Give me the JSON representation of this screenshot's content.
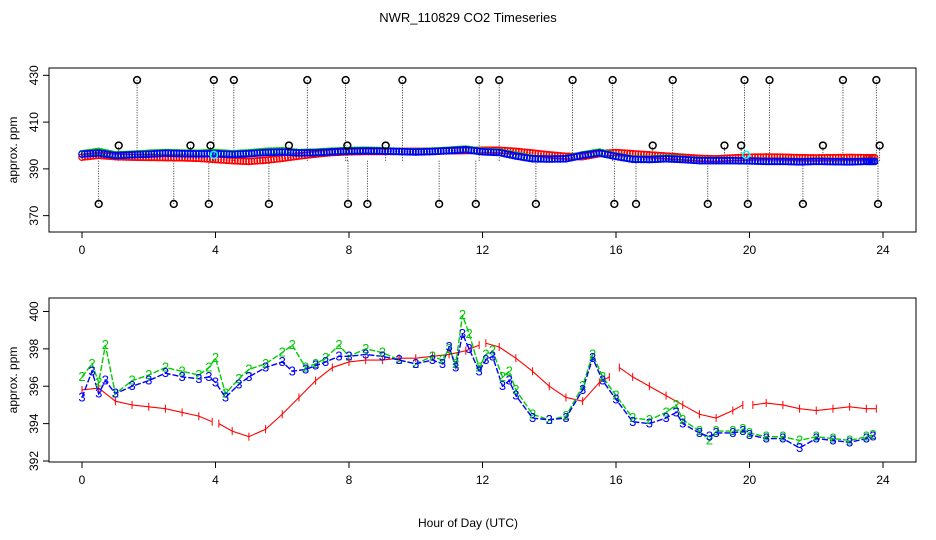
{
  "figure": {
    "title": "NWR_110829  CO2 Timeseries",
    "xlabel": "Hour of Day (UTC)"
  },
  "colors": {
    "red": "#ff0000",
    "green": "#00cc00",
    "blue": "#0000ff",
    "cyan": "#00ffff",
    "black": "#000000"
  },
  "chart_data": [
    {
      "type": "scatter",
      "title": "NWR_110829  CO2 Timeseries",
      "xlabel": "Hour of Day (UTC)",
      "ylabel": "approx. ppm",
      "xlim": [
        0,
        24
      ],
      "ylim": [
        366,
        431
      ],
      "xticks": [
        0,
        4,
        8,
        12,
        16,
        20,
        24
      ],
      "yticks": [
        370,
        390,
        410,
        430
      ],
      "series": [
        {
          "name": "red",
          "color": "#ff0000",
          "marker": "circle",
          "x": [
            0,
            0.5,
            1,
            1.5,
            2,
            2.5,
            3,
            3.5,
            4,
            4.5,
            5,
            5.5,
            6,
            6.5,
            7,
            7.5,
            8,
            8.5,
            9,
            9.5,
            10,
            10.5,
            11,
            11.5,
            12,
            12.5,
            13,
            13.5,
            14,
            14.5,
            15,
            15.5,
            16,
            16.5,
            17,
            17.5,
            18,
            18.5,
            19,
            19.5,
            20,
            20.5,
            21,
            21.5,
            22,
            22.5,
            23,
            23.5,
            23.8
          ],
          "y": [
            395,
            395.8,
            395.2,
            395,
            394.9,
            394.8,
            394.7,
            394.5,
            394,
            393.5,
            393.2,
            393.7,
            394.5,
            395.5,
            396.3,
            397,
            397.3,
            397.4,
            397.4,
            397.5,
            397.5,
            397.6,
            397.7,
            397.8,
            398,
            398,
            397.5,
            396.8,
            396,
            395.4,
            395.2,
            396.5,
            397,
            396.5,
            396,
            395.5,
            395,
            394.5,
            394.3,
            394.7,
            395,
            395.1,
            395,
            394.8,
            394.7,
            394.8,
            394.9,
            394.8,
            394.8
          ]
        },
        {
          "name": "green",
          "color": "#00cc00",
          "marker": "circle",
          "x": [
            0,
            0.5,
            1,
            1.5,
            2,
            2.5,
            3,
            3.5,
            4,
            4.5,
            5,
            5.5,
            6,
            6.5,
            7,
            7.5,
            8,
            8.5,
            9,
            9.5,
            10,
            10.5,
            11,
            11.5,
            12,
            12.5,
            13,
            13.5,
            14,
            14.5,
            15,
            15.5,
            16,
            16.5,
            17,
            17.5,
            18,
            18.5,
            19,
            19.5,
            20,
            20.5,
            21,
            21.5,
            22,
            22.5,
            23,
            23.5,
            23.8
          ],
          "y": [
            396.5,
            397.5,
            396,
            396.3,
            396.7,
            397,
            396.8,
            396.7,
            397,
            396.5,
            396.9,
            397.5,
            397.8,
            397,
            397.2,
            397.6,
            397.9,
            398,
            397.8,
            397.5,
            397.3,
            397.6,
            398,
            398.5,
            397.5,
            397.2,
            395.8,
            394.5,
            394.3,
            394.4,
            396,
            397.2,
            395.5,
            394.3,
            394.2,
            394.6,
            394.2,
            393.6,
            393.6,
            393.6,
            393.5,
            393.3,
            393.3,
            393.1,
            393.3,
            393.2,
            393.1,
            393.3,
            393.3
          ]
        },
        {
          "name": "blue",
          "color": "#0000ff",
          "marker": "circle",
          "x": [
            0,
            0.5,
            1,
            1.5,
            2,
            2.5,
            3,
            3.5,
            4,
            4.5,
            5,
            5.5,
            6,
            6.5,
            7,
            7.5,
            8,
            8.5,
            9,
            9.5,
            10,
            10.5,
            11,
            11.5,
            12,
            12.5,
            13,
            13.5,
            14,
            14.5,
            15,
            15.5,
            16,
            16.5,
            17,
            17.5,
            18,
            18.5,
            19,
            19.5,
            20,
            20.5,
            21,
            21.5,
            22,
            22.5,
            23,
            23.5,
            23.8
          ],
          "y": [
            396.3,
            396.8,
            395.7,
            396,
            396.3,
            396.7,
            396.5,
            396.4,
            396.5,
            396.2,
            396.5,
            397,
            397.2,
            396.8,
            396.9,
            397.3,
            397.6,
            397.7,
            397.6,
            397.4,
            397.2,
            397.4,
            397.8,
            398.2,
            397.3,
            397,
            395.5,
            394.3,
            394.2,
            394.3,
            395.8,
            396.8,
            395.3,
            394.1,
            394,
            394.3,
            394,
            393.5,
            393.5,
            393.5,
            393.4,
            393.2,
            393.2,
            393,
            393.2,
            393.1,
            393,
            393.2,
            393.2
          ]
        },
        {
          "name": "spikes",
          "color": "#000000",
          "marker": "circle-open",
          "x": [
            0.5,
            1.1,
            1.65,
            2.75,
            3.25,
            3.8,
            3.85,
            3.95,
            4.55,
            5.6,
            6.2,
            6.75,
            7.9,
            7.95,
            7.97,
            8.55,
            9.1,
            9.6,
            10.7,
            11.8,
            11.9,
            12.5,
            13.6,
            14.7,
            15.9,
            15.95,
            16.6,
            17.1,
            17.7,
            18.75,
            19.25,
            19.75,
            19.85,
            19.95,
            20.6,
            21.6,
            22.2,
            22.8,
            23.8,
            23.85,
            23.9
          ],
          "y": [
            375,
            400,
            428,
            375,
            400,
            375,
            400,
            428,
            428,
            375,
            400,
            428,
            428,
            400,
            375,
            375,
            400,
            428,
            375,
            375,
            428,
            428,
            375,
            428,
            428,
            375,
            375,
            400,
            428,
            375,
            400,
            400,
            428,
            375,
            428,
            375,
            400,
            428,
            428,
            375,
            400
          ]
        }
      ]
    },
    {
      "type": "line",
      "ylabel": "approx. ppm",
      "xlim": [
        0,
        24
      ],
      "ylim": [
        392,
        400.4
      ],
      "xticks": [
        0,
        4,
        8,
        12,
        16,
        20,
        24
      ],
      "yticks": [
        392,
        394,
        396,
        398,
        400
      ],
      "series": [
        {
          "name": "red",
          "color": "#ff0000",
          "marker": "|",
          "x": [
            0,
            0.5,
            1,
            1.5,
            2,
            2.5,
            3,
            3.5,
            3.9,
            null,
            4.1,
            4.5,
            5,
            5.5,
            6,
            6.5,
            7,
            7.5,
            8,
            8.5,
            9,
            9.5,
            10,
            10.5,
            11,
            11.5,
            11.9,
            null,
            12.1,
            12.5,
            13,
            13.5,
            14,
            14.5,
            15,
            15.5,
            15.8,
            null,
            16.1,
            16.5,
            17,
            17.5,
            18,
            18.5,
            19,
            19.5,
            19.8,
            null,
            20.1,
            20.5,
            21,
            21.5,
            22,
            22.5,
            23,
            23.5,
            23.8
          ],
          "y": [
            395.8,
            395.9,
            395.2,
            395,
            394.9,
            394.8,
            394.6,
            394.4,
            394.1,
            null,
            394,
            393.6,
            393.3,
            393.7,
            394.5,
            395.4,
            396.3,
            397,
            397.3,
            397.4,
            397.4,
            397.5,
            397.5,
            397.6,
            397.7,
            397.9,
            398.2,
            null,
            398.3,
            398.1,
            397.5,
            396.8,
            396,
            395.4,
            395.2,
            396.2,
            396.5,
            null,
            397,
            396.5,
            396,
            395.5,
            395,
            394.5,
            394.3,
            394.7,
            395,
            null,
            395,
            395.1,
            395,
            394.8,
            394.7,
            394.8,
            394.9,
            394.8,
            394.8
          ]
        },
        {
          "name": "green",
          "color": "#00cc00",
          "marker": "2",
          "x": [
            0,
            0.3,
            0.5,
            0.7,
            1,
            1.5,
            2,
            2.5,
            3,
            3.5,
            3.8,
            4,
            4.3,
            4.7,
            5,
            5.5,
            6,
            6.3,
            6.7,
            7,
            7.3,
            7.7,
            8,
            8.5,
            9,
            9.5,
            10,
            10.5,
            10.8,
            11,
            11.2,
            11.4,
            11.6,
            11.9,
            12.1,
            12.3,
            12.6,
            12.8,
            13,
            13.5,
            14,
            14.5,
            15,
            15.3,
            15.6,
            16,
            16.5,
            17,
            17.5,
            17.8,
            18,
            18.5,
            18.8,
            19,
            19.5,
            19.8,
            20,
            20.5,
            21,
            21.5,
            22,
            22.5,
            23,
            23.5,
            23.7
          ],
          "y": [
            396.5,
            397.2,
            396.2,
            398.2,
            395.6,
            396.3,
            396.6,
            397,
            396.8,
            396.6,
            397,
            397.5,
            395.6,
            396.4,
            396.9,
            397.2,
            397.8,
            398.2,
            397,
            397.2,
            397.5,
            398.2,
            397.6,
            398,
            397.8,
            397.4,
            397.2,
            397.6,
            397.4,
            398,
            397.2,
            399.8,
            398.8,
            397,
            397.7,
            397.9,
            396.5,
            396.8,
            395.8,
            394.5,
            394.2,
            394.4,
            396,
            397.7,
            396.5,
            395.5,
            394.3,
            394.2,
            394.6,
            395,
            394.2,
            393.6,
            393.1,
            393.6,
            393.6,
            393.7,
            393.5,
            393.3,
            393.3,
            393.1,
            393.3,
            393.2,
            393.1,
            393.3,
            393.4
          ]
        },
        {
          "name": "blue",
          "color": "#0000ff",
          "marker": "3",
          "x": [
            0,
            0.3,
            0.5,
            0.7,
            1,
            1.5,
            2,
            2.5,
            3,
            3.5,
            3.8,
            4,
            4.3,
            4.7,
            5,
            5.5,
            6,
            6.3,
            6.7,
            7,
            7.3,
            7.7,
            8,
            8.5,
            9,
            9.5,
            10,
            10.5,
            10.8,
            11,
            11.2,
            11.4,
            11.6,
            11.9,
            12.1,
            12.3,
            12.6,
            12.8,
            13,
            13.5,
            14,
            14.5,
            15,
            15.3,
            15.6,
            16,
            16.5,
            17,
            17.5,
            17.8,
            18,
            18.5,
            18.8,
            19,
            19.5,
            19.8,
            20,
            20.5,
            21,
            21.5,
            22,
            22.5,
            23,
            23.5,
            23.7
          ],
          "y": [
            395.4,
            396.8,
            395.6,
            396.3,
            395.6,
            396,
            396.3,
            396.7,
            396.5,
            396.4,
            396.5,
            396.2,
            395.4,
            396.1,
            396.5,
            397,
            397.3,
            396.8,
            396.9,
            397.1,
            397.3,
            397.6,
            397.6,
            397.7,
            397.6,
            397.4,
            397.2,
            397.4,
            397.2,
            398.1,
            397,
            398.8,
            398,
            396.8,
            397.4,
            397.6,
            396,
            396.3,
            395.5,
            394.3,
            394.2,
            394.3,
            395.8,
            397.5,
            396.3,
            395.3,
            394.1,
            394,
            394.3,
            394.6,
            394,
            393.5,
            393.3,
            393.5,
            393.5,
            393.6,
            393.4,
            393.2,
            393.2,
            392.7,
            393.2,
            393.1,
            393,
            393.2,
            393.3
          ]
        }
      ]
    }
  ]
}
